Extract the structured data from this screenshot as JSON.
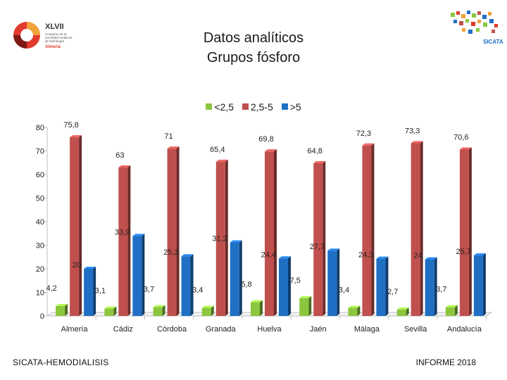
{
  "header": {
    "title_line1": "Datos analíticos",
    "title_line2": "Grupos fósforo"
  },
  "logos": {
    "left": {
      "roman": "XLVII",
      "lines": [
        "Congreso de la",
        "Sociedad Andaluza",
        "de Nefrología"
      ],
      "city": "Almería"
    },
    "right": {
      "name": "SICATA"
    }
  },
  "footer": {
    "left": "SICATA-HEMODIALISIS",
    "right": "INFORME 2018"
  },
  "colors": {
    "green": "#8cc63f",
    "red": "#c0504d",
    "blue": "#1f6fc5",
    "axis": "#bfbfbf",
    "text": "#222222"
  },
  "chart_data": {
    "type": "bar",
    "title": "Datos analíticos Grupos fósforo",
    "categories": [
      "Almería",
      "Cádiz",
      "Córdoba",
      "Granada",
      "Huelva",
      "Jaén",
      "Málaga",
      "Sevilla",
      "Andalucía"
    ],
    "series": [
      {
        "name": "<2,5",
        "color": "#8cc63f",
        "values": [
          4.2,
          3.1,
          3.7,
          3.4,
          5.8,
          7.5,
          3.4,
          2.7,
          3.7
        ],
        "labels": [
          "4,2",
          "3,1",
          "3,7",
          "3,4",
          "5,8",
          "7,5",
          "3,4",
          "2,7",
          "3,7"
        ]
      },
      {
        "name": "2,5-5",
        "color": "#c0504d",
        "values": [
          75.8,
          63,
          71,
          65.4,
          69.8,
          64.8,
          72.3,
          73.3,
          70.6
        ],
        "labels": [
          "75,8",
          "63",
          "71",
          "65,4",
          "69,8",
          "64,8",
          "72,3",
          "73,3",
          "70,6"
        ]
      },
      {
        "name": ">5",
        "color": "#1f6fc5",
        "values": [
          20,
          33.9,
          25.3,
          31.2,
          24.4,
          27.7,
          24.3,
          24,
          25.7
        ],
        "labels": [
          "20",
          "33,9",
          "25,3",
          "31,2",
          "24,4",
          "27,7",
          "24,3",
          "24",
          "25,7"
        ]
      }
    ],
    "ylim": [
      0,
      80
    ],
    "yticks": [
      0,
      10,
      20,
      30,
      40,
      50,
      60,
      70,
      80
    ],
    "legend_position": "top-center",
    "grid": false
  }
}
